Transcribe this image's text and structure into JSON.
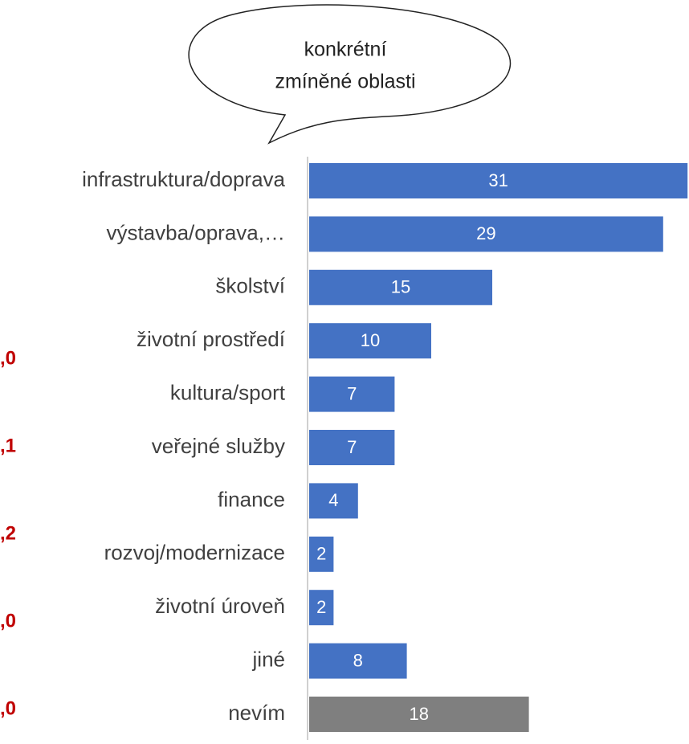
{
  "chart_data": {
    "type": "bar",
    "orientation": "horizontal",
    "callout": [
      "konkrétní",
      "zmíněné oblasti"
    ],
    "categories": [
      "infrastruktura/doprava",
      "výstavba/oprava,…",
      "školství",
      "životní prostředí",
      "kultura/sport",
      "veřejné služby",
      "finance",
      "rozvoj/modernizace",
      "životní úroveň",
      "jiné",
      "nevím"
    ],
    "values": [
      31,
      29,
      15,
      10,
      7,
      7,
      4,
      2,
      2,
      8,
      18
    ],
    "colors": [
      "#4472c4",
      "#4472c4",
      "#4472c4",
      "#4472c4",
      "#4472c4",
      "#4472c4",
      "#4472c4",
      "#4472c4",
      "#4472c4",
      "#4472c4",
      "#7f7f7f"
    ],
    "annotations": [
      ",0",
      ",1",
      ",2",
      ",0",
      ",0"
    ]
  }
}
